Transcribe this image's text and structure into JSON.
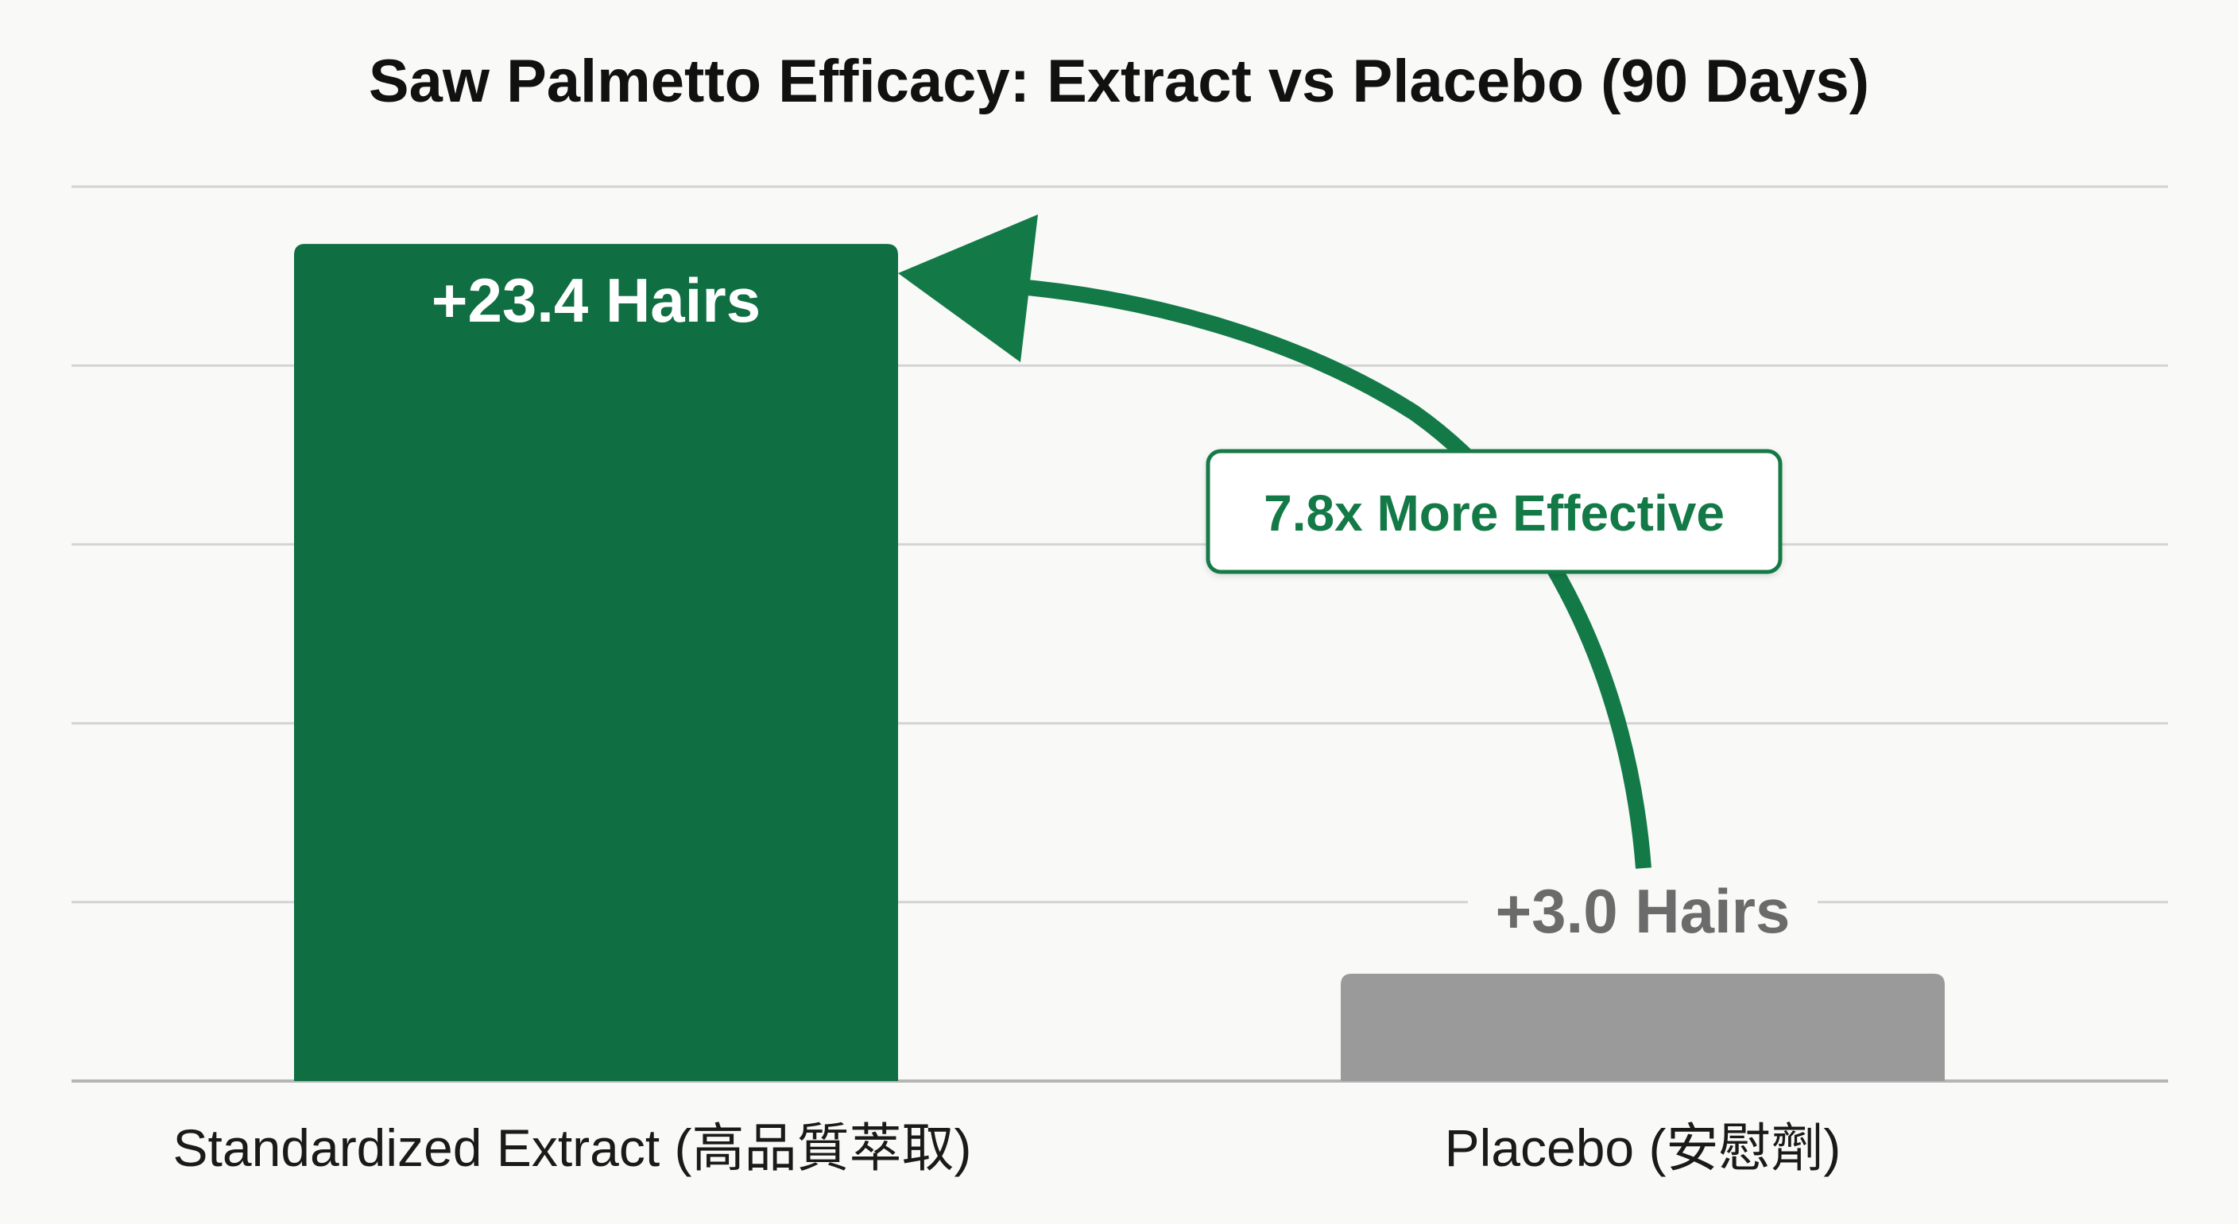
{
  "chart_data": {
    "type": "bar",
    "title": "Saw Palmetto Efficacy: Extract vs Placebo (90 Days)",
    "categories": [
      "Standardized Extract (高品質萃取)",
      "Placebo (安慰劑)"
    ],
    "values": [
      23.4,
      3.0
    ],
    "value_labels": [
      "+23.4 Hairs",
      "+3.0 Hairs"
    ],
    "ylim": [
      0,
      25
    ],
    "grid": true,
    "annotation": "7.8x More Effective",
    "colors": {
      "extract": "#0f6e42",
      "placebo": "#9a9a9a",
      "arrow": "#137a47",
      "grid": "#d4d4d4",
      "axis": "#b5b5b5",
      "title_text": "#111111",
      "placebo_label": "#6b6b6b"
    }
  }
}
